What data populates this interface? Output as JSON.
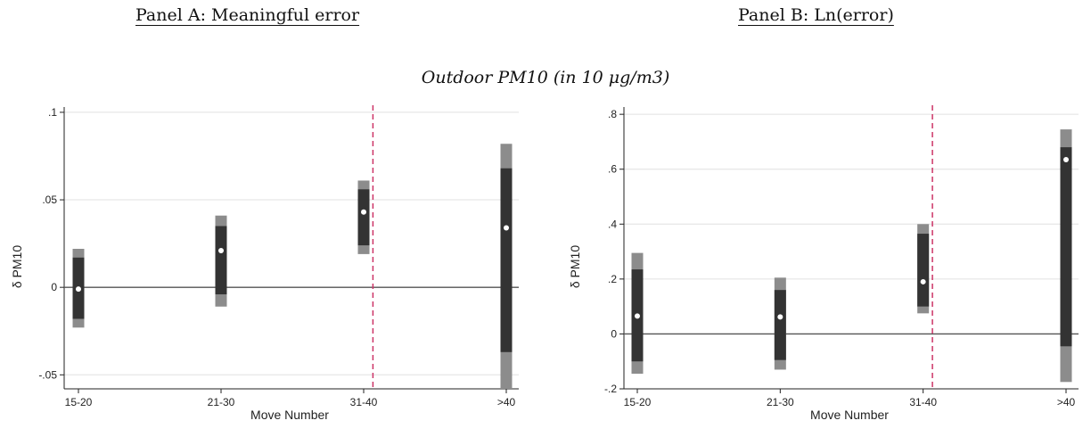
{
  "panels": {
    "a": {
      "title": "Panel A: Meaningful error"
    },
    "b": {
      "title": "Panel B: Ln(error)"
    }
  },
  "subtitle": "Outdoor PM10 (in 10 μg/m3)",
  "colors": {
    "inner_ci": "#333333",
    "outer_ci": "#8c8c8c",
    "point": "#ffffff",
    "reference_line": "#cc3366",
    "grid": "#e0e0e0"
  },
  "chart_data": [
    {
      "type": "scatter",
      "title": "Panel A: Meaningful error",
      "xlabel": "Move Number",
      "ylabel": "δ PM10",
      "categories": [
        "15-20",
        "21-30",
        "31-40",
        ">40"
      ],
      "ylim": [
        -0.058,
        0.102
      ],
      "yticks": [
        -0.05,
        0,
        0.05,
        0.1
      ],
      "ytick_labels": [
        "-.05",
        "0",
        ".05",
        ".1"
      ],
      "grid": true,
      "series": [
        {
          "estimate": [
            -0.001,
            0.021,
            0.043,
            0.034
          ],
          "inner_ci": [
            [
              -0.018,
              0.017
            ],
            [
              -0.004,
              0.035
            ],
            [
              0.024,
              0.056
            ],
            [
              -0.037,
              0.068
            ]
          ],
          "outer_ci": [
            [
              -0.023,
              0.022
            ],
            [
              -0.011,
              0.041
            ],
            [
              0.019,
              0.061
            ],
            [
              -0.058,
              0.082
            ]
          ]
        }
      ],
      "hline_y": 0,
      "vline_between": [
        "31-40",
        ">40"
      ]
    },
    {
      "type": "scatter",
      "title": "Panel B: Ln(error)",
      "xlabel": "Move Number",
      "ylabel": "δ PM10",
      "categories": [
        "15-20",
        "21-30",
        "31-40",
        ">40"
      ],
      "ylim": [
        -0.2,
        0.82
      ],
      "yticks": [
        -0.2,
        0,
        0.2,
        0.4,
        0.6,
        0.8
      ],
      "ytick_labels": [
        "-.2",
        "0",
        ".2",
        ".4",
        ".6",
        ".8"
      ],
      "grid": true,
      "series": [
        {
          "estimate": [
            0.065,
            0.062,
            0.19,
            0.635
          ],
          "inner_ci": [
            [
              -0.1,
              0.235
            ],
            [
              -0.095,
              0.16
            ],
            [
              0.1,
              0.365
            ],
            [
              -0.045,
              0.68
            ]
          ],
          "outer_ci": [
            [
              -0.145,
              0.295
            ],
            [
              -0.13,
              0.205
            ],
            [
              0.075,
              0.4
            ],
            [
              -0.175,
              0.745
            ]
          ]
        }
      ],
      "hline_y": 0,
      "vline_between": [
        "31-40",
        ">40"
      ]
    }
  ]
}
